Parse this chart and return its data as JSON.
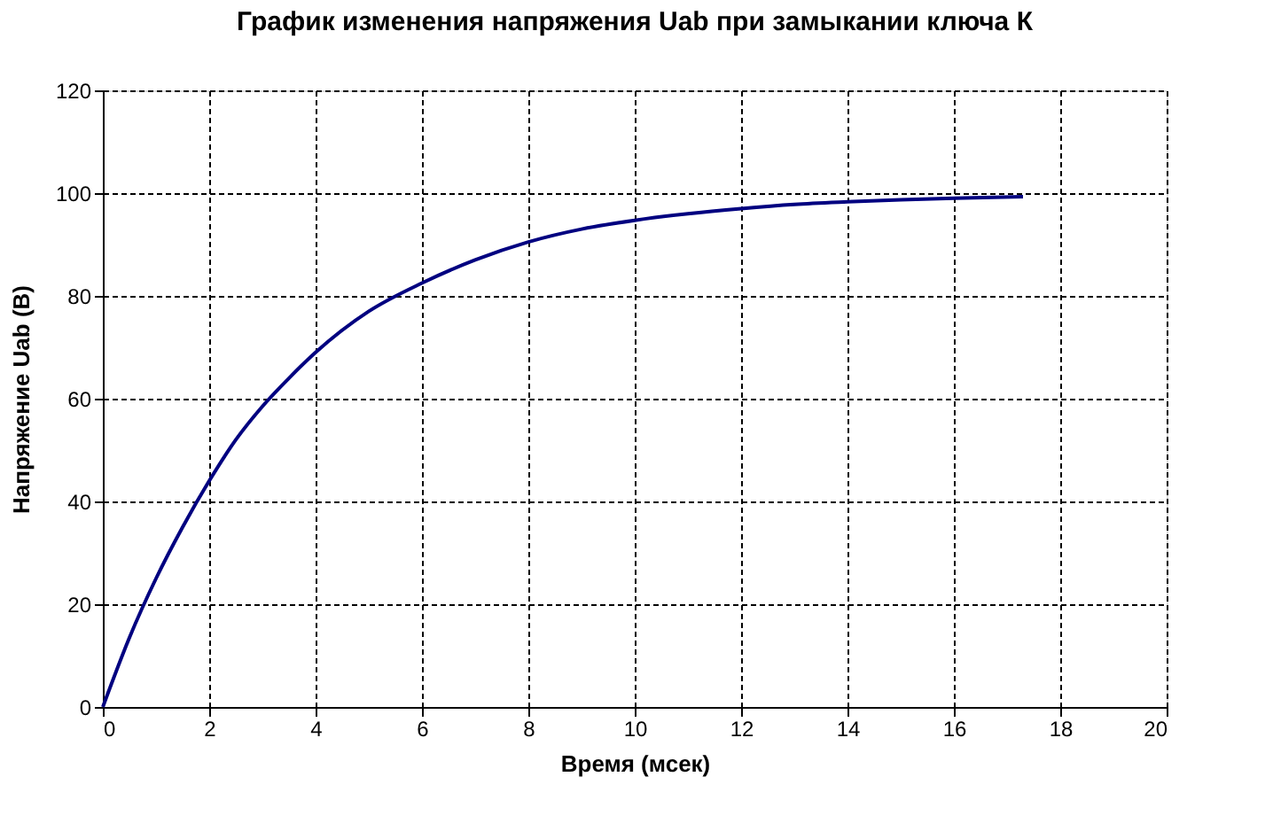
{
  "chart_data": {
    "type": "line",
    "title": "График изменения напряжения Uab при замыкании ключа К",
    "xlabel": "Время (мсек)",
    "ylabel": "Напряжение Uab  (В)",
    "x": [
      0,
      0.5,
      1,
      1.5,
      2,
      2.5,
      3,
      3.5,
      4,
      5,
      6,
      7,
      8,
      9,
      10,
      11,
      12,
      13,
      14,
      15,
      16,
      17.3
    ],
    "series": [
      {
        "color": "#000080",
        "values": [
          0,
          13.5,
          25,
          35,
          44,
          52,
          58.5,
          64,
          69,
          77,
          82.5,
          87,
          90.5,
          93,
          94.7,
          96,
          97,
          97.8,
          98.3,
          98.7,
          99,
          99.3
        ]
      }
    ],
    "xlim": [
      0,
      20
    ],
    "xticks": [
      0,
      2,
      4,
      6,
      8,
      10,
      12,
      14,
      16,
      18,
      20
    ],
    "ylim": [
      0,
      120
    ],
    "yticks": [
      0,
      20,
      40,
      60,
      80,
      100,
      120
    ],
    "grid": true,
    "legend": false,
    "marker": "none",
    "line_style": "solid"
  }
}
